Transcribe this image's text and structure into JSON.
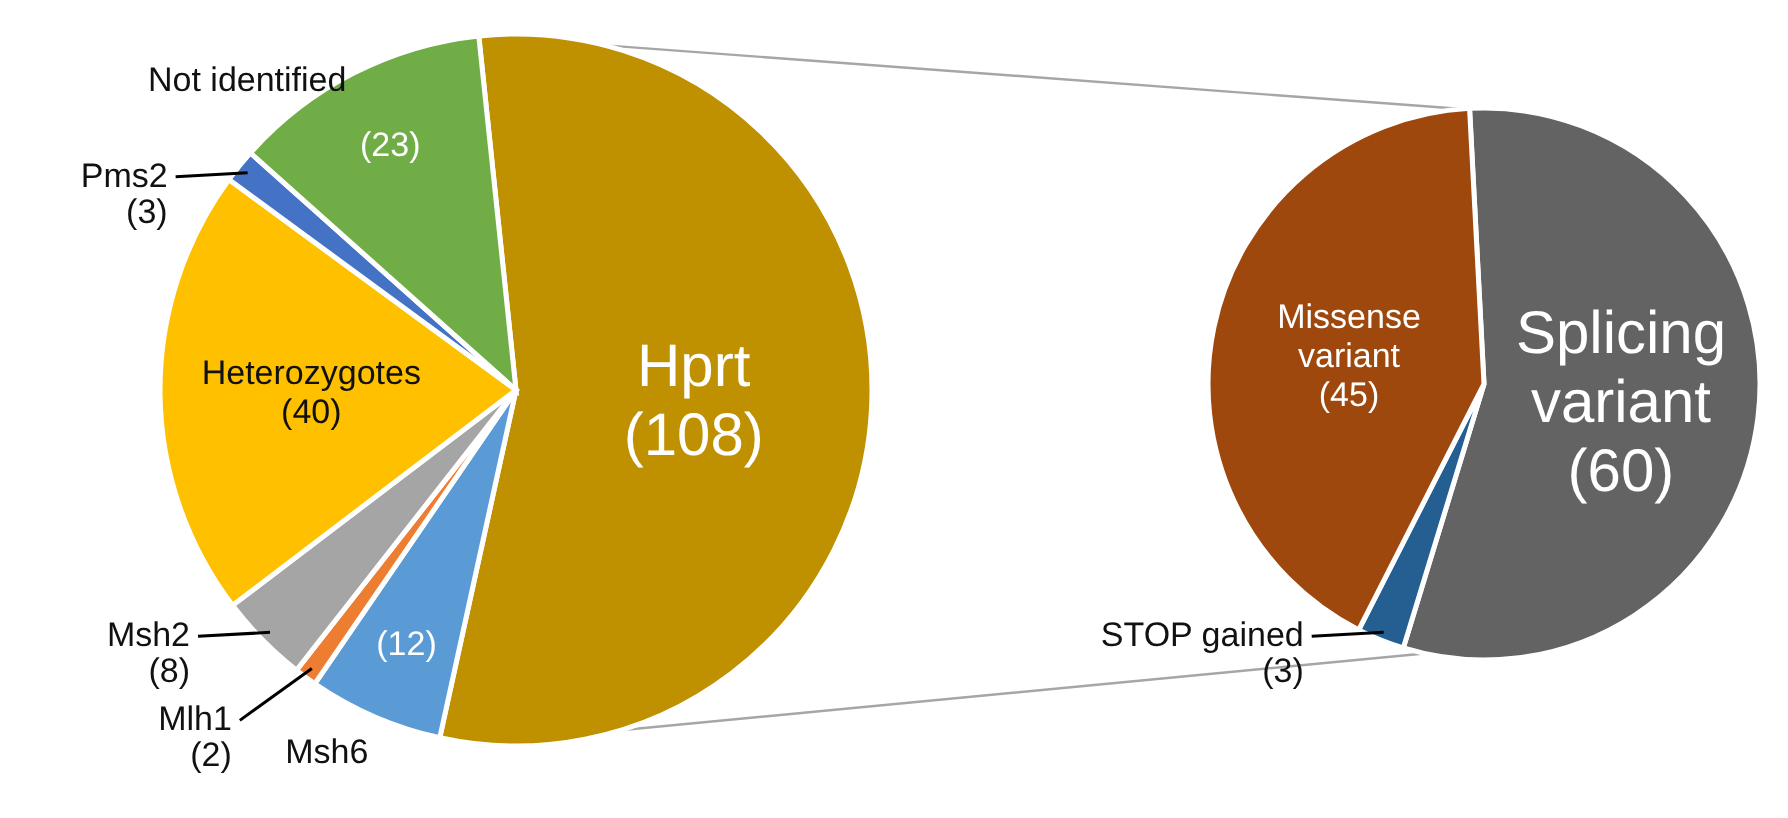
{
  "chart_data": [
    {
      "type": "pie",
      "categories": [
        "Hprt",
        "Msh6",
        "Mlh1",
        "Msh2",
        "Heterozygotes",
        "Pms2",
        "Not identified"
      ],
      "values": [
        108,
        12,
        2,
        8,
        40,
        3,
        23
      ],
      "colors": [
        "#bf9000",
        "#5b9bd5",
        "#ed7d31",
        "#a5a5a5",
        "#ffc000",
        "#4472c4",
        "#70ad47"
      ],
      "value_labels": [
        "(108)",
        "(12)",
        "(2)",
        "(8)",
        "(40)",
        "(3)",
        "(23)"
      ]
    },
    {
      "type": "pie",
      "categories": [
        "Splicing variant",
        "STOP gained",
        "Missense variant"
      ],
      "values": [
        60,
        3,
        45
      ],
      "colors": [
        "#636363",
        "#255e91",
        "#9e480e"
      ],
      "value_labels": [
        "(60)",
        "(3)",
        "(45)"
      ]
    }
  ]
}
